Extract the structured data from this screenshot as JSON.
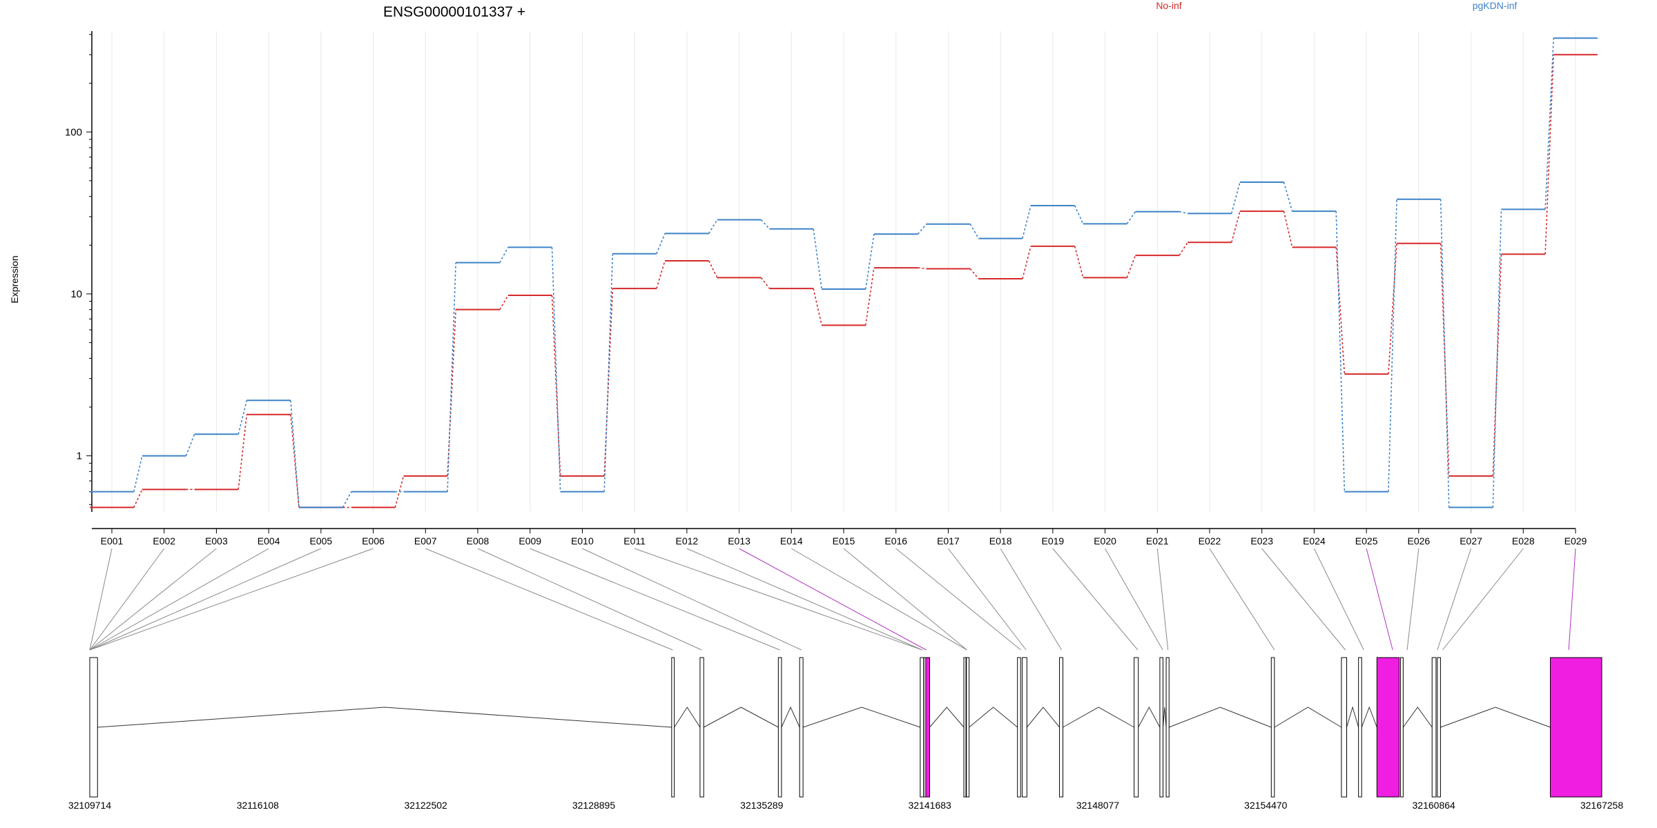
{
  "chart_data": {
    "type": "line",
    "title": "ENSG00000101337 +",
    "ylabel": "Expression",
    "yscale": "log",
    "ylim": [
      0.45,
      420
    ],
    "y_ticks": [
      1,
      10,
      100
    ],
    "y_tick_labels": [
      "1",
      "10",
      "100"
    ],
    "categories": [
      "E001",
      "E002",
      "E003",
      "E004",
      "E005",
      "E006",
      "E007",
      "E008",
      "E009",
      "E010",
      "E011",
      "E012",
      "E013",
      "E014",
      "E015",
      "E016",
      "E017",
      "E018",
      "E019",
      "E020",
      "E021",
      "E022",
      "E023",
      "E024",
      "E025",
      "E026",
      "E027",
      "E028",
      "E029"
    ],
    "highlighted_exons": [
      "E013",
      "E025",
      "E029"
    ],
    "series": [
      {
        "name": "No-inf",
        "color": "#d62728",
        "values": [
          0.48,
          0.62,
          0.62,
          1.8,
          0.48,
          0.48,
          0.75,
          8.0,
          9.8,
          0.75,
          10.8,
          16.0,
          12.6,
          10.8,
          6.4,
          14.5,
          14.3,
          12.4,
          19.7,
          12.6,
          17.3,
          20.8,
          32.4,
          19.4,
          3.2,
          20.5,
          0.75,
          17.6,
          300
        ]
      },
      {
        "name": "pgKDN-inf",
        "color": "#3c82c8",
        "values": [
          0.6,
          1.0,
          1.36,
          2.2,
          0.48,
          0.6,
          0.6,
          15.6,
          19.4,
          0.6,
          17.7,
          23.6,
          28.7,
          25.2,
          10.7,
          23.4,
          27.0,
          22.0,
          35.1,
          27.1,
          32.2,
          31.4,
          49.0,
          32.4,
          0.6,
          38.4,
          0.48,
          33.3,
          380
        ]
      }
    ],
    "gene_model": {
      "x_ticks": [
        "32109714",
        "32116108",
        "32122502",
        "32128895",
        "32135289",
        "32141683",
        "32148077",
        "32154470",
        "32160864",
        "32167258"
      ],
      "x_range": [
        32109714,
        32167258
      ],
      "exon_labels_to_gene": [
        {
          "exon": "E001",
          "gene_pos": 32109714
        },
        {
          "exon": "E002",
          "gene_pos": 32109714
        },
        {
          "exon": "E003",
          "gene_pos": 32109714
        },
        {
          "exon": "E004",
          "gene_pos": 32109714
        },
        {
          "exon": "E005",
          "gene_pos": 32109714
        },
        {
          "exon": "E006",
          "gene_pos": 32109714
        },
        {
          "exon": "E007",
          "gene_pos": 32131900
        },
        {
          "exon": "E008",
          "gene_pos": 32133000
        },
        {
          "exon": "E009",
          "gene_pos": 32135980
        },
        {
          "exon": "E010",
          "gene_pos": 32136800
        },
        {
          "exon": "E011",
          "gene_pos": 32141400
        },
        {
          "exon": "E012",
          "gene_pos": 32141400
        },
        {
          "exon": "E013",
          "gene_pos": 32141550
        },
        {
          "exon": "E014",
          "gene_pos": 32143100
        },
        {
          "exon": "E015",
          "gene_pos": 32143100
        },
        {
          "exon": "E016",
          "gene_pos": 32145150
        },
        {
          "exon": "E017",
          "gene_pos": 32145350
        },
        {
          "exon": "E018",
          "gene_pos": 32146700
        },
        {
          "exon": "E019",
          "gene_pos": 32149600
        },
        {
          "exon": "E020",
          "gene_pos": 32150550
        },
        {
          "exon": "E021",
          "gene_pos": 32150750
        },
        {
          "exon": "E022",
          "gene_pos": 32154800
        },
        {
          "exon": "E023",
          "gene_pos": 32157500
        },
        {
          "exon": "E024",
          "gene_pos": 32158200
        },
        {
          "exon": "E025",
          "gene_pos": 32159300
        },
        {
          "exon": "E026",
          "gene_pos": 32159850
        },
        {
          "exon": "E027",
          "gene_pos": 32161000
        },
        {
          "exon": "E028",
          "gene_pos": 32161200
        },
        {
          "exon": "E029",
          "gene_pos": 32166000
        }
      ],
      "exons": [
        {
          "start": 32109714,
          "end": 32109800,
          "highlight": false
        },
        {
          "start": 32109714,
          "end": 32110010,
          "highlight": false
        },
        {
          "start": 32131860,
          "end": 32131960,
          "highlight": false
        },
        {
          "start": 32132940,
          "end": 32133080,
          "highlight": false
        },
        {
          "start": 32135920,
          "end": 32136040,
          "highlight": false
        },
        {
          "start": 32136730,
          "end": 32136860,
          "highlight": false
        },
        {
          "start": 32141320,
          "end": 32141450,
          "highlight": false
        },
        {
          "start": 32141460,
          "end": 32141530,
          "highlight": false
        },
        {
          "start": 32141530,
          "end": 32141680,
          "highlight": true
        },
        {
          "start": 32142980,
          "end": 32143060,
          "highlight": false
        },
        {
          "start": 32143080,
          "end": 32143180,
          "highlight": false
        },
        {
          "start": 32145020,
          "end": 32145140,
          "highlight": false
        },
        {
          "start": 32145200,
          "end": 32145380,
          "highlight": false
        },
        {
          "start": 32146620,
          "end": 32146750,
          "highlight": false
        },
        {
          "start": 32149460,
          "end": 32149620,
          "highlight": false
        },
        {
          "start": 32150440,
          "end": 32150560,
          "highlight": false
        },
        {
          "start": 32150680,
          "end": 32150790,
          "highlight": false
        },
        {
          "start": 32154680,
          "end": 32154800,
          "highlight": false
        },
        {
          "start": 32157350,
          "end": 32157550,
          "highlight": false
        },
        {
          "start": 32158000,
          "end": 32158120,
          "highlight": false
        },
        {
          "start": 32158700,
          "end": 32159550,
          "highlight": true
        },
        {
          "start": 32159600,
          "end": 32159700,
          "highlight": false
        },
        {
          "start": 32160800,
          "end": 32160950,
          "highlight": false
        },
        {
          "start": 32161000,
          "end": 32161120,
          "highlight": false
        },
        {
          "start": 32165300,
          "end": 32167258,
          "highlight": true
        }
      ]
    },
    "highlight_color": "#f01ee0",
    "legend_placement": "top"
  }
}
